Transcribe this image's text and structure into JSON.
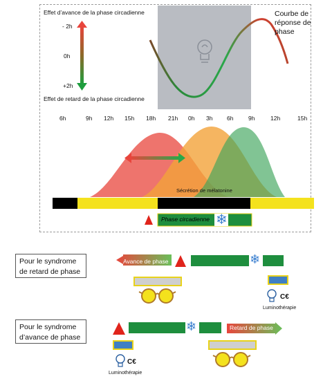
{
  "top": {
    "advance_label": "Effet d’avance de la phase circadienne",
    "delay_label": "Effet de retard de la phase circadienne",
    "curve_label": "Courbe de\nréponse de\nphase",
    "scale": {
      "minus2": "- 2h",
      "zero": "0h",
      "plus2": "+2h"
    },
    "ticks": [
      "6h",
      "9h",
      "12h",
      "15h",
      "18h",
      "21h",
      "0h",
      "3h",
      "6h",
      "9h",
      "12h",
      "15h"
    ],
    "melatonin_label": "Sécrétion de mélatonine",
    "phase_label": "Phase circadienne"
  },
  "retard": {
    "box_label": "Pour le syndrome\nde retard de phase",
    "arrow_label": "Avance de phase",
    "lamp_label": "Luminothérapie",
    "ce_mark": "C€"
  },
  "avance": {
    "box_label": "Pour le syndrome\nd’avance de phase",
    "arrow_label": "Retard de phase",
    "lamp_label": "Luminothérapie",
    "ce_mark": "C€"
  },
  "colors": {
    "red": "#e8453c",
    "orange": "#f2a23a",
    "green": "#1e8e3e",
    "yellow": "#f4e21d",
    "grey_band": "#b9bcc2"
  }
}
